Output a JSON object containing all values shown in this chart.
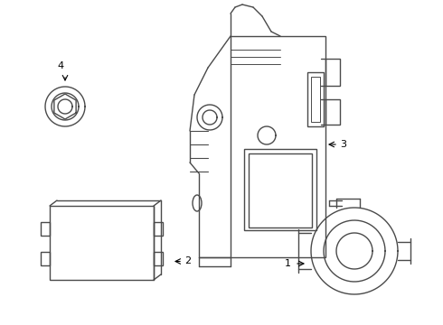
{
  "background_color": "#ffffff",
  "line_color": "#4a4a4a",
  "label_color": "#000000",
  "line_width": 1.0,
  "fig_width": 4.9,
  "fig_height": 3.6,
  "dpi": 100
}
